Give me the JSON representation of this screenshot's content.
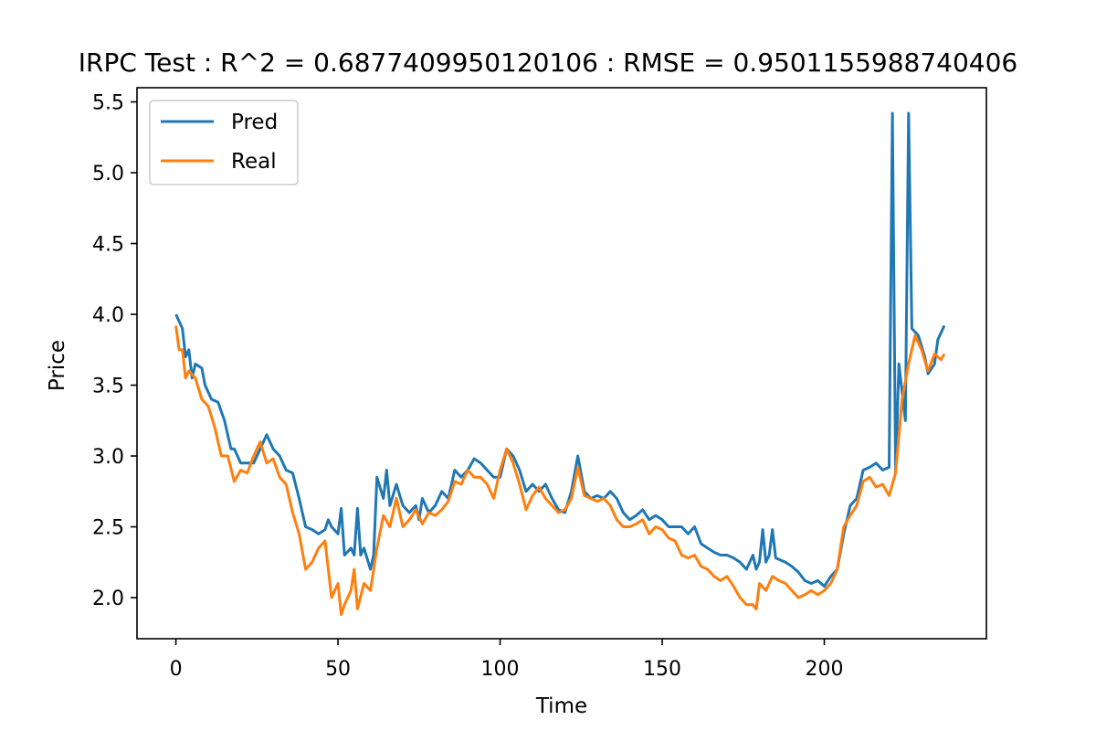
{
  "chart_data": {
    "type": "line",
    "title": "IRPC Test : R^2 = 0.6877409950120106 : RMSE = 0.9501155988740406",
    "xlabel": "Time",
    "ylabel": "Price",
    "xlim": [
      -12,
      250
    ],
    "ylim": [
      1.71,
      5.6
    ],
    "xticks": [
      0,
      50,
      100,
      150,
      200
    ],
    "yticks": [
      2.0,
      2.5,
      3.0,
      3.5,
      4.0,
      4.5,
      5.0,
      5.5
    ],
    "xtick_labels": [
      "0",
      "50",
      "100",
      "150",
      "200"
    ],
    "ytick_labels": [
      "2.0",
      "2.5",
      "3.0",
      "3.5",
      "4.0",
      "4.5",
      "5.0",
      "5.5"
    ],
    "grid": false,
    "legend_position": "top-left",
    "series": [
      {
        "name": "Pred",
        "color": "#1f77b4",
        "points": [
          [
            0,
            4.0
          ],
          [
            2,
            3.9
          ],
          [
            3,
            3.7
          ],
          [
            4,
            3.75
          ],
          [
            5,
            3.55
          ],
          [
            6,
            3.65
          ],
          [
            8,
            3.62
          ],
          [
            9,
            3.5
          ],
          [
            11,
            3.4
          ],
          [
            13,
            3.38
          ],
          [
            15,
            3.25
          ],
          [
            17,
            3.05
          ],
          [
            18,
            3.05
          ],
          [
            20,
            2.95
          ],
          [
            22,
            2.95
          ],
          [
            24,
            2.95
          ],
          [
            26,
            3.05
          ],
          [
            28,
            3.15
          ],
          [
            30,
            3.05
          ],
          [
            32,
            3.0
          ],
          [
            34,
            2.9
          ],
          [
            36,
            2.88
          ],
          [
            38,
            2.7
          ],
          [
            40,
            2.5
          ],
          [
            42,
            2.48
          ],
          [
            44,
            2.45
          ],
          [
            46,
            2.48
          ],
          [
            47,
            2.55
          ],
          [
            48,
            2.5
          ],
          [
            50,
            2.45
          ],
          [
            51,
            2.63
          ],
          [
            52,
            2.3
          ],
          [
            54,
            2.35
          ],
          [
            55,
            2.3
          ],
          [
            56,
            2.63
          ],
          [
            57,
            2.3
          ],
          [
            58,
            2.35
          ],
          [
            60,
            2.2
          ],
          [
            61,
            2.3
          ],
          [
            62,
            2.85
          ],
          [
            64,
            2.7
          ],
          [
            65,
            2.9
          ],
          [
            66,
            2.65
          ],
          [
            68,
            2.8
          ],
          [
            70,
            2.65
          ],
          [
            72,
            2.6
          ],
          [
            74,
            2.65
          ],
          [
            75,
            2.55
          ],
          [
            76,
            2.7
          ],
          [
            78,
            2.6
          ],
          [
            80,
            2.65
          ],
          [
            82,
            2.75
          ],
          [
            84,
            2.7
          ],
          [
            86,
            2.9
          ],
          [
            88,
            2.85
          ],
          [
            90,
            2.9
          ],
          [
            92,
            2.98
          ],
          [
            94,
            2.95
          ],
          [
            96,
            2.9
          ],
          [
            98,
            2.85
          ],
          [
            100,
            2.85
          ],
          [
            102,
            3.05
          ],
          [
            104,
            3.0
          ],
          [
            106,
            2.9
          ],
          [
            108,
            2.75
          ],
          [
            110,
            2.8
          ],
          [
            112,
            2.75
          ],
          [
            114,
            2.8
          ],
          [
            116,
            2.7
          ],
          [
            118,
            2.62
          ],
          [
            120,
            2.6
          ],
          [
            122,
            2.75
          ],
          [
            124,
            3.0
          ],
          [
            126,
            2.75
          ],
          [
            128,
            2.7
          ],
          [
            130,
            2.72
          ],
          [
            132,
            2.7
          ],
          [
            134,
            2.75
          ],
          [
            136,
            2.7
          ],
          [
            138,
            2.6
          ],
          [
            140,
            2.55
          ],
          [
            142,
            2.58
          ],
          [
            144,
            2.62
          ],
          [
            146,
            2.55
          ],
          [
            148,
            2.58
          ],
          [
            150,
            2.55
          ],
          [
            152,
            2.5
          ],
          [
            154,
            2.5
          ],
          [
            156,
            2.5
          ],
          [
            158,
            2.45
          ],
          [
            160,
            2.5
          ],
          [
            162,
            2.38
          ],
          [
            164,
            2.35
          ],
          [
            166,
            2.32
          ],
          [
            168,
            2.3
          ],
          [
            170,
            2.3
          ],
          [
            172,
            2.28
          ],
          [
            174,
            2.25
          ],
          [
            176,
            2.2
          ],
          [
            178,
            2.3
          ],
          [
            179,
            2.2
          ],
          [
            180,
            2.25
          ],
          [
            181,
            2.48
          ],
          [
            182,
            2.25
          ],
          [
            183,
            2.3
          ],
          [
            184,
            2.48
          ],
          [
            185,
            2.28
          ],
          [
            188,
            2.25
          ],
          [
            190,
            2.22
          ],
          [
            192,
            2.18
          ],
          [
            194,
            2.12
          ],
          [
            196,
            2.1
          ],
          [
            198,
            2.12
          ],
          [
            200,
            2.08
          ],
          [
            202,
            2.15
          ],
          [
            204,
            2.2
          ],
          [
            206,
            2.45
          ],
          [
            208,
            2.65
          ],
          [
            210,
            2.7
          ],
          [
            212,
            2.9
          ],
          [
            214,
            2.92
          ],
          [
            216,
            2.95
          ],
          [
            218,
            2.9
          ],
          [
            220,
            2.92
          ],
          [
            221,
            5.42
          ],
          [
            222,
            2.88
          ],
          [
            223,
            3.65
          ],
          [
            225,
            3.25
          ],
          [
            226,
            5.42
          ],
          [
            227,
            3.9
          ],
          [
            229,
            3.85
          ],
          [
            231,
            3.7
          ],
          [
            232,
            3.58
          ],
          [
            234,
            3.65
          ],
          [
            235,
            3.82
          ],
          [
            237,
            3.92
          ]
        ]
      },
      {
        "name": "Real",
        "color": "#ff7f0e",
        "points": [
          [
            0,
            3.92
          ],
          [
            1,
            3.75
          ],
          [
            2,
            3.75
          ],
          [
            3,
            3.55
          ],
          [
            4,
            3.6
          ],
          [
            6,
            3.55
          ],
          [
            8,
            3.4
          ],
          [
            10,
            3.35
          ],
          [
            12,
            3.2
          ],
          [
            14,
            3.0
          ],
          [
            16,
            3.0
          ],
          [
            18,
            2.82
          ],
          [
            20,
            2.9
          ],
          [
            22,
            2.88
          ],
          [
            24,
            3.0
          ],
          [
            26,
            3.1
          ],
          [
            28,
            2.95
          ],
          [
            30,
            2.98
          ],
          [
            32,
            2.85
          ],
          [
            34,
            2.8
          ],
          [
            36,
            2.6
          ],
          [
            38,
            2.45
          ],
          [
            40,
            2.2
          ],
          [
            42,
            2.25
          ],
          [
            44,
            2.35
          ],
          [
            46,
            2.4
          ],
          [
            48,
            2.0
          ],
          [
            50,
            2.1
          ],
          [
            51,
            1.88
          ],
          [
            52,
            1.95
          ],
          [
            54,
            2.05
          ],
          [
            55,
            2.2
          ],
          [
            56,
            1.92
          ],
          [
            58,
            2.1
          ],
          [
            60,
            2.05
          ],
          [
            62,
            2.35
          ],
          [
            64,
            2.58
          ],
          [
            66,
            2.5
          ],
          [
            68,
            2.7
          ],
          [
            70,
            2.5
          ],
          [
            72,
            2.55
          ],
          [
            74,
            2.62
          ],
          [
            76,
            2.52
          ],
          [
            78,
            2.6
          ],
          [
            80,
            2.58
          ],
          [
            82,
            2.62
          ],
          [
            84,
            2.68
          ],
          [
            86,
            2.82
          ],
          [
            88,
            2.8
          ],
          [
            90,
            2.9
          ],
          [
            92,
            2.85
          ],
          [
            94,
            2.85
          ],
          [
            96,
            2.8
          ],
          [
            98,
            2.7
          ],
          [
            100,
            2.9
          ],
          [
            102,
            3.05
          ],
          [
            104,
            2.95
          ],
          [
            106,
            2.8
          ],
          [
            108,
            2.62
          ],
          [
            110,
            2.72
          ],
          [
            112,
            2.78
          ],
          [
            114,
            2.7
          ],
          [
            116,
            2.65
          ],
          [
            118,
            2.6
          ],
          [
            120,
            2.62
          ],
          [
            122,
            2.7
          ],
          [
            124,
            2.92
          ],
          [
            126,
            2.72
          ],
          [
            128,
            2.7
          ],
          [
            130,
            2.68
          ],
          [
            132,
            2.7
          ],
          [
            134,
            2.65
          ],
          [
            136,
            2.55
          ],
          [
            138,
            2.5
          ],
          [
            140,
            2.5
          ],
          [
            142,
            2.52
          ],
          [
            144,
            2.55
          ],
          [
            146,
            2.45
          ],
          [
            148,
            2.5
          ],
          [
            150,
            2.48
          ],
          [
            152,
            2.42
          ],
          [
            154,
            2.4
          ],
          [
            156,
            2.3
          ],
          [
            158,
            2.28
          ],
          [
            160,
            2.3
          ],
          [
            162,
            2.22
          ],
          [
            164,
            2.2
          ],
          [
            166,
            2.15
          ],
          [
            168,
            2.12
          ],
          [
            170,
            2.15
          ],
          [
            172,
            2.08
          ],
          [
            174,
            2.0
          ],
          [
            176,
            1.95
          ],
          [
            178,
            1.95
          ],
          [
            179,
            1.92
          ],
          [
            180,
            2.1
          ],
          [
            182,
            2.05
          ],
          [
            184,
            2.15
          ],
          [
            186,
            2.12
          ],
          [
            188,
            2.1
          ],
          [
            190,
            2.05
          ],
          [
            192,
            2.0
          ],
          [
            194,
            2.02
          ],
          [
            196,
            2.05
          ],
          [
            198,
            2.02
          ],
          [
            200,
            2.05
          ],
          [
            202,
            2.1
          ],
          [
            204,
            2.2
          ],
          [
            206,
            2.5
          ],
          [
            208,
            2.58
          ],
          [
            210,
            2.65
          ],
          [
            212,
            2.82
          ],
          [
            214,
            2.85
          ],
          [
            216,
            2.78
          ],
          [
            218,
            2.8
          ],
          [
            220,
            2.72
          ],
          [
            222,
            2.88
          ],
          [
            224,
            3.4
          ],
          [
            226,
            3.65
          ],
          [
            228,
            3.85
          ],
          [
            230,
            3.75
          ],
          [
            232,
            3.6
          ],
          [
            234,
            3.72
          ],
          [
            236,
            3.68
          ],
          [
            237,
            3.72
          ]
        ]
      }
    ]
  }
}
